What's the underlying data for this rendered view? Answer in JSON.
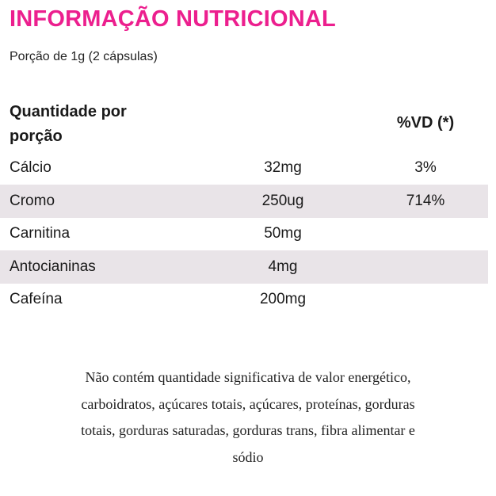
{
  "header": {
    "title": "INFORMAÇÃO NUTRICIONAL",
    "serving": "Porção de 1g (2 cápsulas)"
  },
  "table": {
    "columns": [
      "Quantidade por porção",
      "%VD (*)"
    ],
    "rows": [
      {
        "name": "Cálcio",
        "amount": "32mg",
        "vd": "3%"
      },
      {
        "name": "Cromo",
        "amount": "250ug",
        "vd": "714%"
      },
      {
        "name": "Carnitina",
        "amount": "50mg"
      },
      {
        "name": "Antocianinas",
        "amount": "4mg"
      },
      {
        "name": "Cafeína",
        "amount": "200mg"
      }
    ]
  },
  "footnote": {
    "lines": [
      "Não contém quantidade significativa de valor energético,",
      "carboidratos, açúcares totais, açúcares, proteínas,  gorduras",
      "totais, gorduras saturadas, gorduras trans, fibra alimentar e",
      "sódio"
    ]
  }
}
